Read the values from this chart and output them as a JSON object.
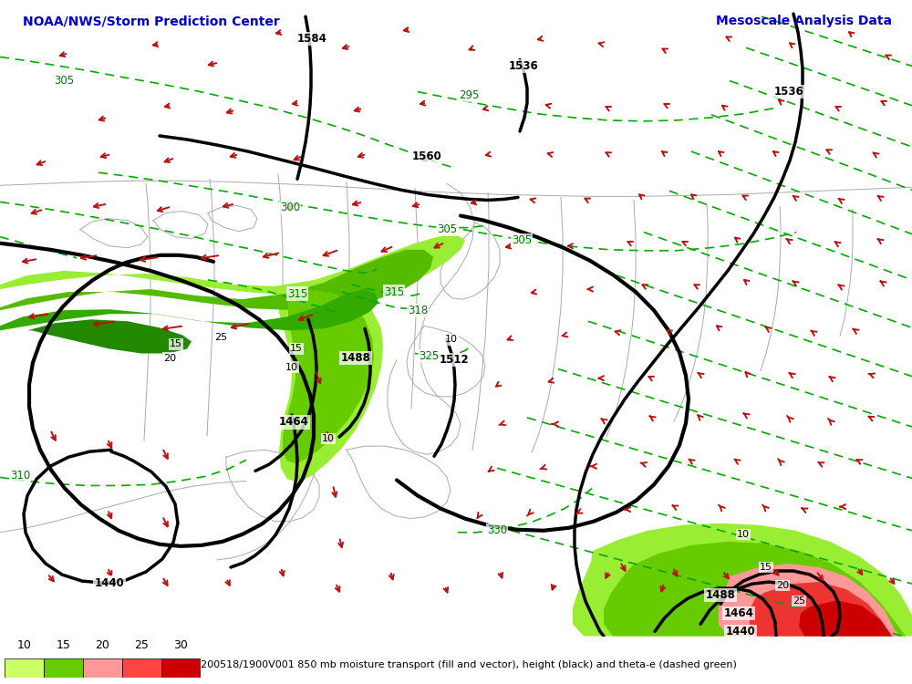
{
  "title_left": "NOAA/NWS/Storm Prediction Center",
  "title_right": "Mesoscale Analysis Data",
  "caption": "200518/1900V001 850 mb moisture transport (fill and vector), height (black) and theta-e (dashed green)",
  "legend_values": [
    10,
    15,
    20,
    25,
    30
  ],
  "legend_colors": [
    "#ccff66",
    "#66cc00",
    "#ff9999",
    "#ff4444",
    "#cc0000"
  ],
  "background_color": "#ffffff",
  "title_color": "#0000cc",
  "title_right_color": "#0000cc",
  "fig_width": 10.0,
  "fig_height": 7.5,
  "dpi": 100
}
